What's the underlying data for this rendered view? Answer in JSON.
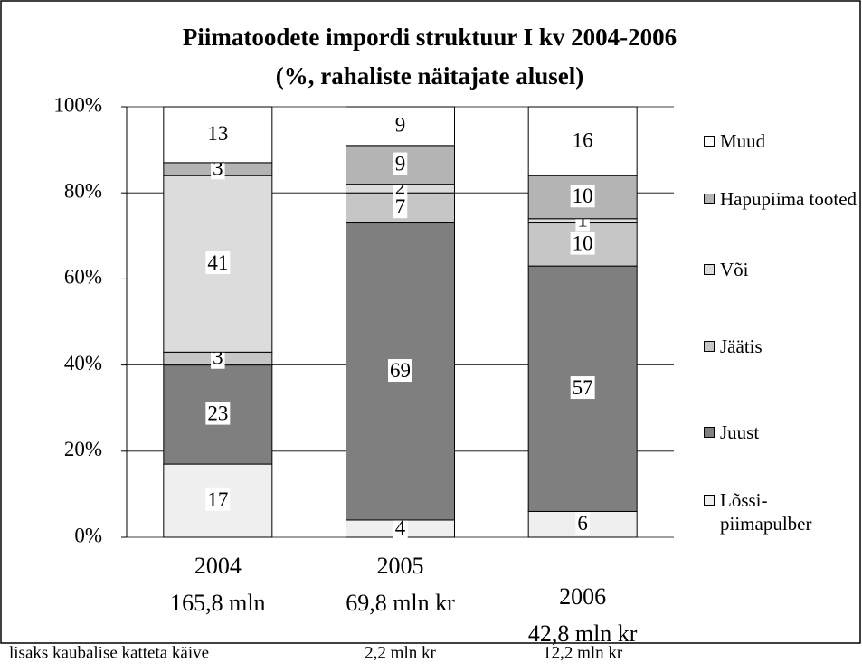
{
  "chart_data": {
    "type": "stacked_bar",
    "title": "Piimatoodete impordi struktuur  I kv 2004-2006",
    "subtitle": "(%, rahaliste näitajate alusel)",
    "categories": [
      "2004",
      "2005",
      "2006"
    ],
    "category_totals": [
      "165,8 mln",
      "69,8 mln kr",
      "42,8 mln kr"
    ],
    "note": {
      "label": "lisaks kaubalise katteta  käive",
      "values": [
        null,
        "2,2 mln kr",
        "12,2 mln kr"
      ]
    },
    "series": [
      {
        "name": "Lõssi-piimapulber",
        "color": "#efefef",
        "values": [
          17,
          4,
          6
        ]
      },
      {
        "name": "Juust",
        "color": "#7f7f7f",
        "values": [
          23,
          69,
          57
        ]
      },
      {
        "name": "Jäätis",
        "color": "#c6c6c6",
        "values": [
          3,
          7,
          10
        ]
      },
      {
        "name": "Või",
        "color": "#dcdcdc",
        "values": [
          41,
          2,
          1
        ]
      },
      {
        "name": "Hapupiima tooted",
        "color": "#b4b4b4",
        "values": [
          3,
          9,
          10
        ]
      },
      {
        "name": "Muud",
        "color": "#ffffff",
        "values": [
          13,
          9,
          16
        ]
      }
    ],
    "ylim": [
      0,
      100
    ],
    "yticks": [
      {
        "value": 0,
        "label": "0%"
      },
      {
        "value": 20,
        "label": "20%"
      },
      {
        "value": 40,
        "label": "40%"
      },
      {
        "value": 60,
        "label": "60%"
      },
      {
        "value": 80,
        "label": "80%"
      },
      {
        "value": 100,
        "label": "100%"
      }
    ],
    "grid": true,
    "legend": "right"
  }
}
